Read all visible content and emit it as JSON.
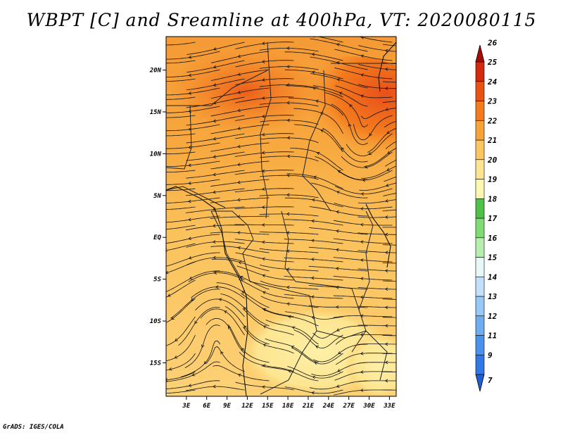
{
  "title": "WBPT [C] and Sreamline at 400hPa, VT: 2020080115",
  "credit": "GrADS: IGES/COLA",
  "map": {
    "lat_labels": [
      "20N",
      "15N",
      "10N",
      "5N",
      "EQ",
      "5S",
      "10S",
      "15S"
    ],
    "lat_values": [
      20,
      15,
      10,
      5,
      0,
      -5,
      -10,
      -15
    ],
    "lon_labels": [
      "3E",
      "6E",
      "9E",
      "12E",
      "15E",
      "18E",
      "21E",
      "24E",
      "27E",
      "30E",
      "33E"
    ],
    "lon_values": [
      3,
      6,
      9,
      12,
      15,
      18,
      21,
      24,
      27,
      30,
      33
    ],
    "lon_range": [
      0,
      34
    ],
    "lat_range": [
      -19,
      24
    ]
  },
  "colorbar": {
    "levels": [
      "7",
      "9",
      "11",
      "12",
      "13",
      "14",
      "15",
      "16",
      "17",
      "18",
      "19",
      "20",
      "21",
      "22",
      "23",
      "24",
      "25",
      "26"
    ],
    "colors": [
      "#1f5fd6",
      "#2f78e6",
      "#4a93ec",
      "#6fadf2",
      "#98c8f6",
      "#c2e0fa",
      "#e8f7f8",
      "#b7eeb0",
      "#7fdc74",
      "#4fc147",
      "#fdf7b0",
      "#fde591",
      "#fbc65f",
      "#f8a339",
      "#f37b1e",
      "#e95312",
      "#d42a0c",
      "#a80b05"
    ]
  }
}
